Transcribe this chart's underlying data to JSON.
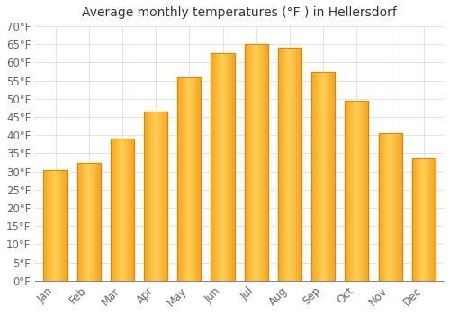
{
  "title": "Average monthly temperatures (°F ) in Hellersdorf",
  "months": [
    "Jan",
    "Feb",
    "Mar",
    "Apr",
    "May",
    "Jun",
    "Jul",
    "Aug",
    "Sep",
    "Oct",
    "Nov",
    "Dec"
  ],
  "values": [
    30.5,
    32.5,
    39.0,
    46.5,
    56.0,
    62.5,
    65.0,
    64.0,
    57.5,
    49.5,
    40.5,
    33.5
  ],
  "bar_color_left": "#F5A623",
  "bar_color_center": "#FFD055",
  "bar_color_right": "#F5A623",
  "bar_edge_color": "#D4881A",
  "background_color": "#FFFFFF",
  "grid_color": "#DDDDDD",
  "ylim": [
    0,
    70
  ],
  "yticks": [
    0,
    5,
    10,
    15,
    20,
    25,
    30,
    35,
    40,
    45,
    50,
    55,
    60,
    65,
    70
  ],
  "title_fontsize": 10,
  "tick_fontsize": 8.5,
  "bar_width": 0.7
}
